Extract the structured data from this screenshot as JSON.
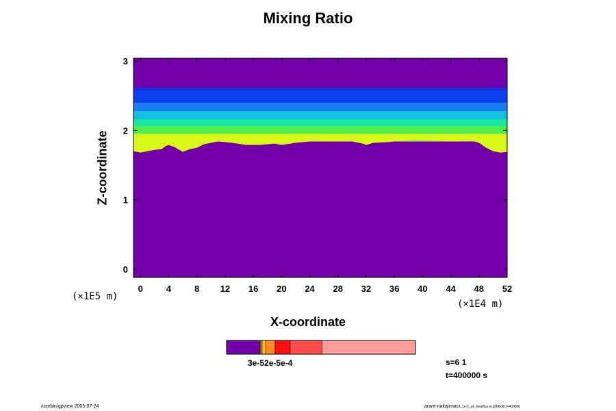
{
  "chart_data": {
    "type": "heatmap",
    "title": "Mixing Ratio",
    "xlabel": "X-coordinate",
    "ylabel": "Z-coordinate",
    "x_unit": "(×1E4 m)",
    "y_unit": "(×1E5 m)",
    "xlim": [
      -1,
      52
    ],
    "ylim": [
      -0.12,
      3.04
    ],
    "x_ticks": [
      0,
      4,
      8,
      12,
      16,
      20,
      24,
      28,
      32,
      36,
      40,
      44,
      48,
      52
    ],
    "y_ticks": [
      0,
      1,
      2,
      3
    ],
    "background_color": "#7100a8",
    "bands": [
      {
        "z_from": 2.56,
        "z_to": 2.62,
        "color": "#1e2cd8"
      },
      {
        "z_from": 2.38,
        "z_to": 2.58,
        "color": "#0a40f0"
      },
      {
        "z_from": 2.25,
        "z_to": 2.4,
        "color": "#1a7cf4"
      },
      {
        "z_from": 2.14,
        "z_to": 2.28,
        "color": "#10c0e0"
      },
      {
        "z_from": 2.04,
        "z_to": 2.16,
        "color": "#18e6a0"
      },
      {
        "z_from": 1.92,
        "z_to": 2.06,
        "color": "#50f050"
      },
      {
        "z_from": 1.84,
        "z_to": 1.95,
        "color": "#a8f030"
      }
    ],
    "lower_boundary_color": "#d8f818",
    "lower_boundary": [
      [
        -1,
        1.7
      ],
      [
        0,
        1.68
      ],
      [
        1,
        1.7
      ],
      [
        2,
        1.72
      ],
      [
        3,
        1.73
      ],
      [
        3.5,
        1.77
      ],
      [
        4,
        1.79
      ],
      [
        5,
        1.75
      ],
      [
        6,
        1.69
      ],
      [
        7,
        1.73
      ],
      [
        8,
        1.75
      ],
      [
        9,
        1.8
      ],
      [
        10,
        1.82
      ],
      [
        11,
        1.84
      ],
      [
        13,
        1.82
      ],
      [
        15,
        1.79
      ],
      [
        17,
        1.79
      ],
      [
        19,
        1.81
      ],
      [
        20,
        1.79
      ],
      [
        22,
        1.82
      ],
      [
        24,
        1.84
      ],
      [
        26,
        1.84
      ],
      [
        28,
        1.84
      ],
      [
        30,
        1.84
      ],
      [
        31.5,
        1.81
      ],
      [
        32,
        1.79
      ],
      [
        33,
        1.82
      ],
      [
        35,
        1.83
      ],
      [
        37,
        1.85
      ],
      [
        39,
        1.87
      ],
      [
        41,
        1.86
      ],
      [
        43,
        1.84
      ],
      [
        45,
        1.84
      ],
      [
        47,
        1.85
      ],
      [
        48,
        1.82
      ],
      [
        49,
        1.75
      ],
      [
        50,
        1.7
      ],
      [
        51,
        1.68
      ],
      [
        52,
        1.69
      ]
    ],
    "color_scale": [
      {
        "value": 0.18,
        "color": "#7100a8"
      },
      {
        "value": 0.01,
        "color": "#b8a000"
      },
      {
        "value": 0.02,
        "color": "#ffbd00"
      },
      {
        "value": 0.05,
        "color": "#ff8c1a"
      },
      {
        "value": 0.08,
        "color": "#ff1010"
      },
      {
        "value": 0.17,
        "color": "#ff4c4c"
      },
      {
        "value": 0.5,
        "color": "#ff9c9c"
      }
    ],
    "color_scale_label": "3e-52e-5e-4"
  },
  "info": {
    "s": "s=6 1",
    "t": "t=400000 s"
  },
  "footer": {
    "left": "/usr/bin/gpview 2005-07-24",
    "right_main": "arare-nakajima",
    "right_small": "03_1e-5_all_heatflux.nc@MixRt,t=400000"
  }
}
